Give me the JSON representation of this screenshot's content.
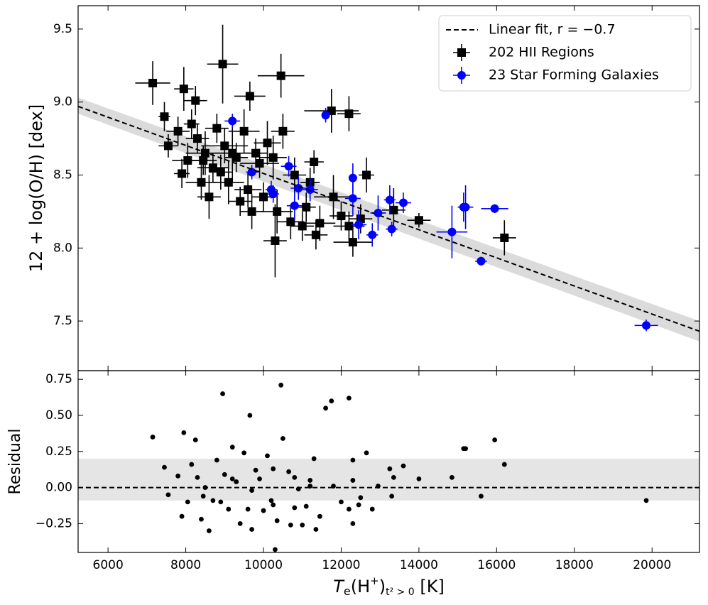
{
  "chart_data": {
    "type": "scatter",
    "xlabel": [
      "T",
      "e",
      "(H",
      "+",
      ")",
      "t² > 0",
      " [K]"
    ],
    "ylabel": "12 + log(O/H) [dex]",
    "xlim": [
      5230,
      21220
    ],
    "xticks": [
      6000,
      8000,
      10000,
      12000,
      14000,
      16000,
      18000,
      20000
    ],
    "ylim": [
      7.16,
      9.66
    ],
    "yticks": [
      7.5,
      {
        "value": 8,
        "label": "8.0"
      },
      8.5,
      {
        "value": 9,
        "label": "9.0"
      },
      9.5
    ],
    "legend": "upper right",
    "fit": {
      "label": "Linear fit, r = −0.7",
      "color": "#000000",
      "x": [
        5230,
        21220
      ],
      "values": [
        8.97,
        7.43
      ],
      "band_upper": [
        9.03,
        7.5
      ],
      "band_lower": [
        8.92,
        7.36
      ]
    },
    "series": [
      {
        "name": "202 HII Regions",
        "color": "#000000",
        "marker": "square",
        "x": [
          7150,
          7450,
          7950,
          8250,
          8950,
          9650,
          10450,
          11750,
          12200,
          7800,
          7550,
          8050,
          8300,
          8500,
          8700,
          8800,
          9000,
          9100,
          9300,
          9500,
          9700,
          9900,
          10100,
          10300,
          10350,
          10500,
          10700,
          11000,
          11200,
          11300,
          11350,
          11450,
          11800,
          12000,
          12200,
          12300,
          12650,
          13350,
          14000,
          16200,
          7900,
          8400,
          8600,
          9200,
          9600,
          10000,
          10800,
          11100,
          9400,
          8150,
          8900,
          9800,
          10250,
          12500,
          8450
        ],
        "values": [
          9.13,
          8.9,
          9.09,
          9.01,
          9.26,
          9.04,
          9.18,
          8.94,
          8.92,
          8.8,
          8.7,
          8.6,
          8.75,
          8.65,
          8.55,
          8.82,
          8.7,
          8.45,
          8.62,
          8.8,
          8.25,
          8.58,
          8.72,
          8.05,
          8.25,
          8.8,
          8.18,
          8.15,
          8.45,
          8.59,
          8.09,
          8.17,
          8.35,
          8.22,
          8.15,
          8.04,
          8.5,
          8.26,
          8.19,
          8.07,
          8.51,
          8.45,
          8.35,
          8.65,
          8.4,
          8.35,
          8.5,
          8.28,
          8.32,
          8.85,
          8.52,
          8.65,
          8.62,
          8.2,
          8.6
        ],
        "xerr": [
          450,
          150,
          250,
          300,
          400,
          400,
          600,
          700,
          300,
          300,
          250,
          400,
          300,
          500,
          400,
          300,
          600,
          400,
          300,
          400,
          300,
          500,
          350,
          300,
          400,
          300,
          350,
          300,
          250,
          250,
          300,
          400,
          500,
          300,
          400,
          500,
          200,
          300,
          300,
          300,
          200,
          400,
          300,
          450,
          350,
          300,
          300,
          250,
          300,
          200,
          300,
          300,
          350,
          300,
          350
        ],
        "yerr": [
          0.15,
          0.1,
          0.15,
          0.1,
          0.27,
          0.1,
          0.15,
          0.15,
          0.12,
          0.1,
          0.08,
          0.12,
          0.1,
          0.15,
          0.1,
          0.1,
          0.12,
          0.15,
          0.1,
          0.15,
          0.12,
          0.1,
          0.15,
          0.25,
          0.15,
          0.12,
          0.12,
          0.1,
          0.1,
          0.08,
          0.1,
          0.12,
          0.15,
          0.1,
          0.1,
          0.1,
          0.12,
          0.15,
          0.05,
          0.12,
          0.1,
          0.12,
          0.15,
          0.2,
          0.12,
          0.1,
          0.12,
          0.1,
          0.1,
          0.1,
          0.12,
          0.1,
          0.15,
          0.1,
          0.1
        ],
        "residuals": [
          0.35,
          0.14,
          0.38,
          0.33,
          0.65,
          0.5,
          0.71,
          0.6,
          0.62,
          0.08,
          -0.05,
          -0.1,
          0.07,
          0,
          -0.09,
          0.19,
          0.09,
          -0.15,
          0.04,
          0.24,
          -0.29,
          0.06,
          0.22,
          -0.43,
          -0.23,
          0.34,
          -0.26,
          -0.26,
          0.05,
          0.2,
          -0.29,
          -0.2,
          0.01,
          -0.1,
          -0.15,
          -0.25,
          0.24,
          0.07,
          0.06,
          0.16,
          -0.2,
          -0.22,
          -0.3,
          0.06,
          -0.15,
          -0.16,
          0.07,
          -0.13,
          -0.25,
          0.16,
          -0.1,
          0.12,
          0.13,
          -0.07,
          -0.06
        ]
      },
      {
        "name": "23 Star Forming Galaxies",
        "color": "#0000ff",
        "marker": "circle",
        "x": [
          9200,
          11600,
          10650,
          10250,
          10800,
          12300,
          12300,
          12450,
          12800,
          12950,
          13250,
          13300,
          13600,
          14850,
          15150,
          15200,
          15950,
          15600,
          19850,
          10200,
          11200,
          9700,
          10900
        ],
        "values": [
          8.87,
          8.91,
          8.56,
          8.37,
          8.29,
          8.48,
          8.34,
          8.16,
          8.09,
          8.24,
          8.33,
          8.13,
          8.31,
          8.11,
          8.28,
          8.28,
          8.27,
          7.91,
          7.47,
          8.4,
          8.4,
          8.52,
          8.41
        ],
        "xerr": [
          200,
          100,
          200,
          150,
          200,
          100,
          200,
          200,
          150,
          200,
          150,
          150,
          200,
          400,
          150,
          200,
          350,
          150,
          300,
          150,
          200,
          150,
          200
        ],
        "yerr": [
          0.05,
          0.05,
          0.07,
          0.06,
          0.1,
          0.1,
          0.12,
          0.1,
          0.08,
          0.12,
          0.1,
          0.05,
          0.07,
          0.18,
          0.1,
          0.15,
          0.03,
          0.03,
          0.04,
          0.06,
          0.08,
          0.05,
          0.08
        ],
        "residuals": [
          0.28,
          0.55,
          0.11,
          -0.12,
          -0.14,
          0.19,
          0.05,
          -0.12,
          -0.15,
          0.01,
          0.13,
          -0.06,
          0.15,
          0.07,
          0.27,
          0.27,
          0.33,
          -0.06,
          -0.09,
          -0.09,
          0.01,
          -0.02,
          -0.01
        ]
      }
    ],
    "residual_panel": {
      "ylabel": "Residual",
      "ylim": [
        -0.45,
        0.81
      ],
      "yticks": [
        {
          "value": -0.25,
          "label": "−0.25"
        },
        {
          "value": 0,
          "label": "0.00"
        },
        0.25,
        {
          "value": 0.5,
          "label": "0.50"
        },
        0.75
      ],
      "band": [
        -0.09,
        0.2
      ],
      "band_color": "#e5e5e5",
      "zero": 0,
      "point_color": "#000000"
    }
  }
}
